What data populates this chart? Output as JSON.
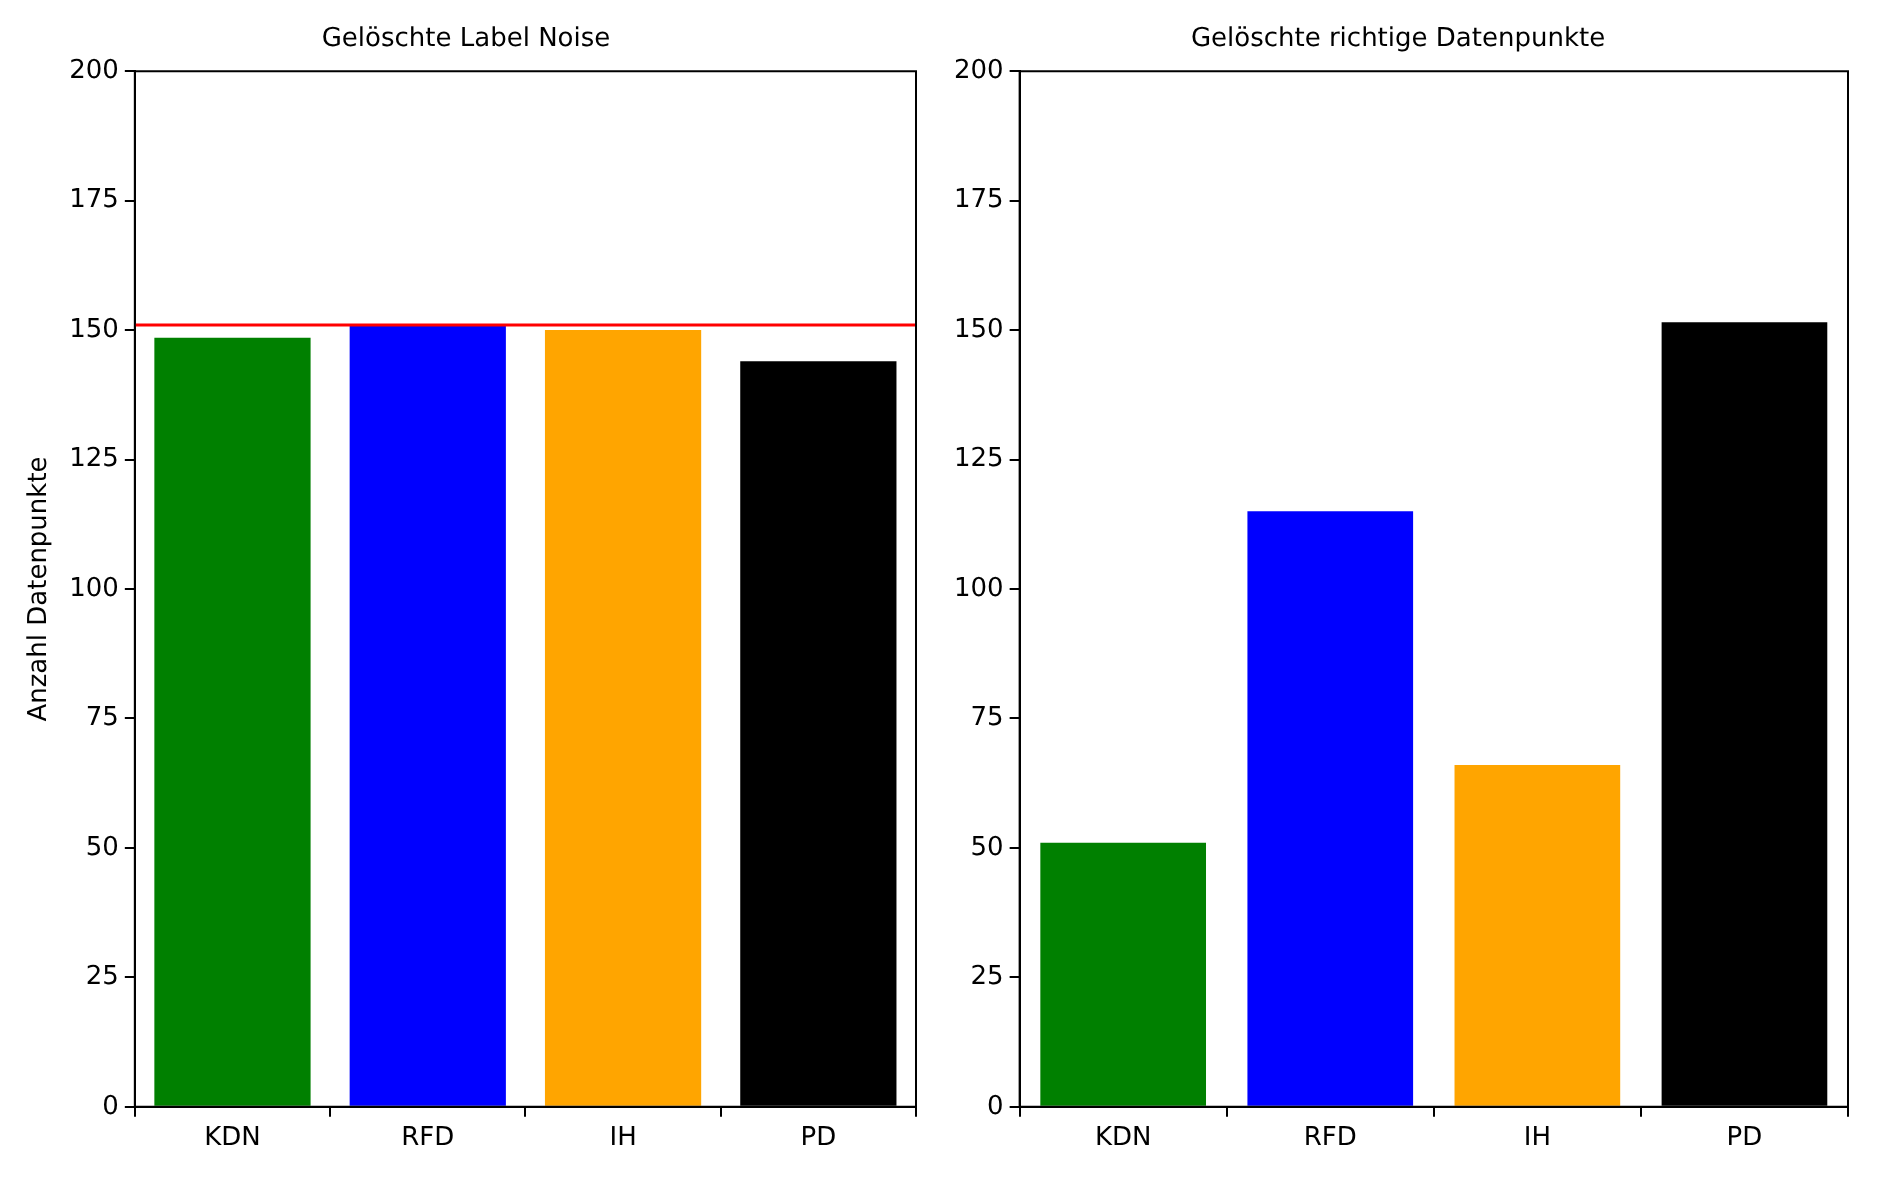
{
  "chart_data": [
    {
      "type": "bar",
      "title": "Gelöschte Label Noise",
      "ylabel": "Anzahl Datenpunkte",
      "categories": [
        "KDN",
        "RFD",
        "IH",
        "PD"
      ],
      "values": [
        148.5,
        151,
        150,
        144
      ],
      "colors": [
        "#008000",
        "#0000ff",
        "#ffa500",
        "#000000"
      ],
      "ylim": [
        0,
        200
      ],
      "yticks": [
        0,
        25,
        50,
        75,
        100,
        125,
        150,
        175,
        200
      ],
      "grid": false,
      "legend": false,
      "ref_lines": [
        {
          "axis": "y",
          "value": 151,
          "color": "#ff0000"
        }
      ]
    },
    {
      "type": "bar",
      "title": "Gelöschte richtige Datenpunkte",
      "categories": [
        "KDN",
        "RFD",
        "IH",
        "PD"
      ],
      "values": [
        51,
        115,
        66,
        151.5
      ],
      "colors": [
        "#008000",
        "#0000ff",
        "#ffa500",
        "#000000"
      ],
      "ylim": [
        0,
        200
      ],
      "yticks": [
        0,
        25,
        50,
        75,
        100,
        125,
        150,
        175,
        200
      ],
      "grid": false,
      "legend": false
    }
  ]
}
